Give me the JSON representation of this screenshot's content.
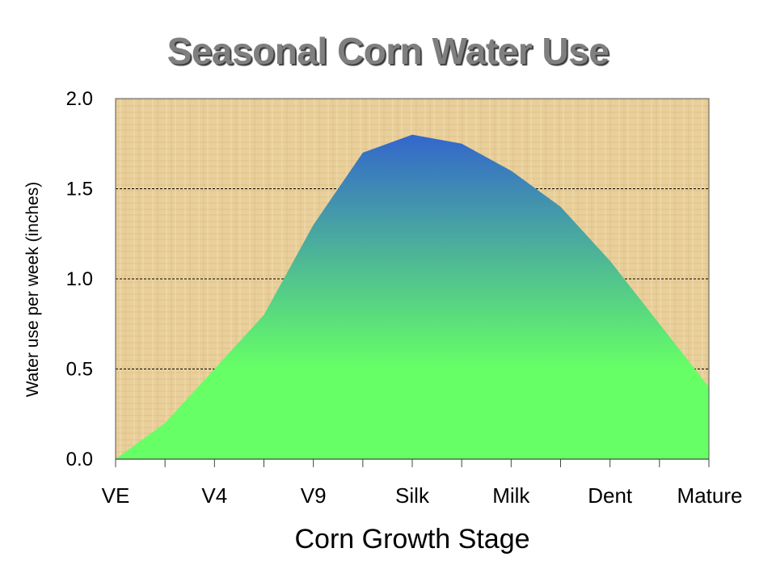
{
  "colors": {
    "plot_background": "#e9cf9a",
    "fill_top": "#3366cc",
    "fill_bottom": "#66ff66",
    "gridline": "#000000",
    "title": "#7f7f7f"
  },
  "chart_data": {
    "type": "area",
    "title": "Seasonal Corn Water Use",
    "xlabel": "Corn Growth Stage",
    "ylabel": "Water use per week (inches)",
    "categories": [
      "VE",
      "",
      "V4",
      "",
      "V9",
      "",
      "Silk",
      "",
      "Milk",
      "",
      "Dent",
      "",
      "Mature"
    ],
    "category_tick_labels": [
      "VE",
      "V4",
      "V9",
      "Silk",
      "Milk",
      "Dent",
      "Mature"
    ],
    "values": [
      0.0,
      0.2,
      0.5,
      0.8,
      1.3,
      1.7,
      1.8,
      1.75,
      1.6,
      1.4,
      1.1,
      0.75,
      0.4
    ],
    "ylim": [
      0,
      2.0
    ],
    "yticks": [
      "0.0",
      "0.5",
      "1.0",
      "1.5",
      "2.0"
    ],
    "ytick_values": [
      0,
      0.5,
      1.0,
      1.5,
      2.0
    ],
    "grid": true,
    "fill": "vertical gradient blue to green"
  }
}
